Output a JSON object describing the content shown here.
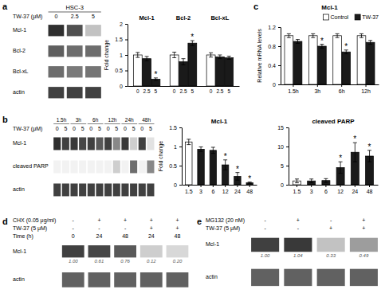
{
  "chart_data": [
    {
      "type": "blot",
      "panel": "a",
      "title": "HSC-3",
      "headers": [
        {
          "label": "TW-37 (μM)",
          "values": [
            "0",
            "2.5",
            "5"
          ]
        }
      ],
      "series": [
        {
          "name": "Mcl-1",
          "values": [
            0.85,
            0.75,
            0.35
          ]
        },
        {
          "name": "Bcl-2",
          "values": [
            0.7,
            0.65,
            0.65
          ]
        },
        {
          "name": "Bcl-xL",
          "values": [
            0.65,
            0.6,
            0.62
          ]
        },
        {
          "name": "actin",
          "values": [
            0.8,
            0.8,
            0.8
          ]
        }
      ]
    },
    {
      "type": "bar",
      "categories": [
        "Mcl-1",
        "Bcl-2",
        "Bcl-xL"
      ],
      "ylabel": "Fold change",
      "ylim": [
        0,
        2
      ],
      "yticks": [
        0,
        0.5,
        1,
        1.5,
        2
      ],
      "series": [
        {
          "name": "0",
          "color": "#ffffff",
          "values": [
            1.0,
            1.0,
            1.0
          ],
          "errors": [
            0.08,
            0.09,
            0.07
          ]
        },
        {
          "name": "2.5",
          "color": "#1a1a1a",
          "values": [
            0.88,
            0.78,
            0.94
          ],
          "errors": [
            0.07,
            0.1,
            0.06
          ]
        },
        {
          "name": "5",
          "color": "#1a1a1a",
          "values": [
            0.22,
            1.38,
            0.91
          ],
          "errors": [
            0.04,
            0.08,
            0.05
          ]
        }
      ],
      "annotations": [
        {
          "text": "*",
          "series": 2,
          "index": 0
        },
        {
          "text": "*",
          "series": 2,
          "index": 1
        }
      ]
    },
    {
      "type": "bar",
      "panel": "c",
      "title": "Mcl-1",
      "categories": [
        "1.5h",
        "3h",
        "6h",
        "12h"
      ],
      "ylabel": "Relative mRNA levels",
      "ylim": [
        0,
        1.2
      ],
      "yticks": [
        0,
        0.4,
        0.8,
        1.2
      ],
      "legend": "upper right",
      "series": [
        {
          "name": "Control",
          "color": "#ffffff",
          "values": [
            1.02,
            1.02,
            1.02,
            1.02
          ],
          "errors": [
            0.04,
            0.04,
            0.04,
            0.04
          ]
        },
        {
          "name": "TW-37",
          "color": "#1a1a1a",
          "values": [
            0.9,
            0.8,
            0.68,
            0.88
          ],
          "errors": [
            0.04,
            0.04,
            0.04,
            0.04
          ]
        }
      ],
      "annotations": [
        {
          "text": "*",
          "series": 1,
          "index": 1
        },
        {
          "text": "*",
          "series": 1,
          "index": 2
        }
      ]
    },
    {
      "type": "blot",
      "panel": "b",
      "groups": [
        "1.5h",
        "3h",
        "6h",
        "12h",
        "24h",
        "48h"
      ],
      "headers": [
        {
          "label": "TW-37 (μM)",
          "values": [
            "0",
            "5",
            "0",
            "5",
            "0",
            "5",
            "0",
            "5",
            "0",
            "5",
            "0",
            "5"
          ]
        }
      ],
      "series": [
        {
          "name": "Mcl-1",
          "values": [
            0.85,
            0.8,
            0.82,
            0.78,
            0.8,
            0.72,
            0.8,
            0.55,
            0.82,
            0.3,
            0.8,
            0.2
          ]
        },
        {
          "name": "cleaved PARP",
          "values": [
            0.1,
            0.1,
            0.1,
            0.1,
            0.1,
            0.1,
            0.1,
            0.3,
            0.1,
            0.65,
            0.1,
            0.55
          ]
        },
        {
          "name": "actin",
          "values": [
            0.8,
            0.8,
            0.8,
            0.8,
            0.8,
            0.8,
            0.8,
            0.8,
            0.8,
            0.8,
            0.8,
            0.8
          ]
        }
      ]
    },
    {
      "type": "bar",
      "title": "Mcl-1",
      "categories": [
        "1.5",
        "3",
        "6",
        "12",
        "24",
        "48"
      ],
      "values": [
        1.12,
        0.93,
        0.9,
        0.52,
        0.22,
        0.05
      ],
      "errors": [
        0.07,
        0.06,
        0.08,
        0.13,
        0.1,
        0.02
      ],
      "colors": [
        "#ffffff",
        "#1a1a1a",
        "#1a1a1a",
        "#1a1a1a",
        "#1a1a1a",
        "#1a1a1a"
      ],
      "ylabel": "Fold change",
      "ylim": [
        0,
        1.5
      ],
      "yticks": [
        0,
        0.5,
        1,
        1.5
      ],
      "annotations": [
        {
          "text": "*",
          "index": 3
        },
        {
          "text": "*",
          "index": 4
        },
        {
          "text": "*",
          "index": 5
        }
      ]
    },
    {
      "type": "bar",
      "title": "cleaved PARP",
      "categories": [
        "1.5",
        "3",
        "6",
        "12",
        "24",
        "48"
      ],
      "values": [
        1.0,
        1.0,
        1.1,
        4.5,
        8.5,
        7.5
      ],
      "errors": [
        0.5,
        0.5,
        0.5,
        1.5,
        2.5,
        1.5
      ],
      "colors": [
        "#ffffff",
        "#1a1a1a",
        "#1a1a1a",
        "#1a1a1a",
        "#1a1a1a",
        "#1a1a1a"
      ],
      "ylim": [
        0,
        15
      ],
      "yticks": [
        0,
        5,
        10,
        15
      ],
      "annotations": [
        {
          "text": "*",
          "index": 3
        },
        {
          "text": "*",
          "index": 4
        },
        {
          "text": "*",
          "index": 5
        }
      ]
    },
    {
      "type": "blot",
      "panel": "d",
      "headers": [
        {
          "label": "CHX (0.05 μg/ml)",
          "values": [
            "-",
            "+",
            "+",
            "+",
            "+"
          ]
        },
        {
          "label": "TW-37 (5 μM)",
          "values": [
            "-",
            "-",
            "-",
            "+",
            "+"
          ]
        },
        {
          "label": "Time (h)",
          "values": [
            "0",
            "24",
            "48",
            "24",
            "48"
          ]
        }
      ],
      "series": [
        {
          "name": "Mcl-1",
          "values": [
            0.8,
            0.78,
            0.72,
            0.3,
            0.25
          ],
          "level_labels": [
            "1.00",
            "0.61",
            "0.76",
            "0.12",
            "0.20"
          ]
        },
        {
          "name": "actin",
          "color": "#616161"
        }
      ]
    },
    {
      "type": "blot",
      "panel": "e",
      "headers": [
        {
          "label": "MG132 (20 nM)",
          "values": [
            "-",
            "+",
            "-",
            "+"
          ]
        },
        {
          "label": "TW-37 (5 μM)",
          "values": [
            "-",
            "-",
            "+",
            "+"
          ]
        }
      ],
      "series": [
        {
          "name": "Mcl-1",
          "values": [
            0.8,
            0.82,
            0.35,
            0.48
          ],
          "level_labels": [
            "1.00",
            "1.04",
            "0.33",
            "0.49"
          ]
        },
        {
          "name": "actin",
          "color": "#616161"
        }
      ]
    }
  ]
}
